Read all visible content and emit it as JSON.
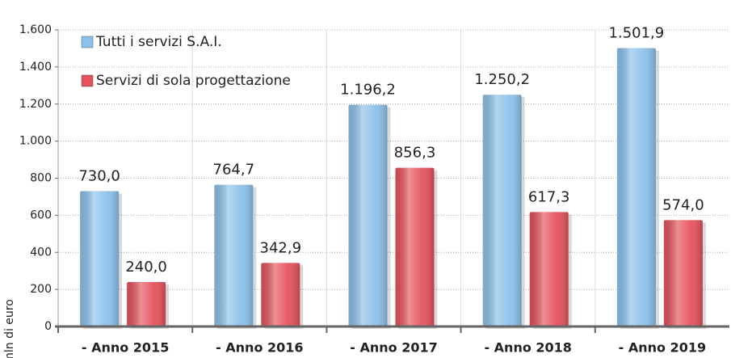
{
  "chart_data": {
    "type": "bar",
    "y_label": "mln di euro",
    "categories": [
      "- Anno 2015",
      "- Anno 2016",
      "- Anno 2017",
      "- Anno 2018",
      "- Anno 2019"
    ],
    "series": [
      {
        "name": "Tutti i servizi S.A.I.",
        "color": "#8cc1ea",
        "values": [
          730.0,
          764.7,
          1196.2,
          1250.2,
          1501.9
        ],
        "value_labels": [
          "730,0",
          "764,7",
          "1.196,2",
          "1.250,2",
          "1.501,9"
        ]
      },
      {
        "name": "Servizi di sola progettazione",
        "color": "#e5525c",
        "values": [
          240.0,
          342.9,
          856.3,
          617.3,
          574.0
        ],
        "value_labels": [
          "240,0",
          "342,9",
          "856,3",
          "617,3",
          "574,0"
        ]
      }
    ],
    "ylim": [
      0,
      1600
    ],
    "yticks": [
      0,
      200,
      400,
      600,
      800,
      {
        "value": 1000,
        "label": "1.000"
      },
      {
        "value": 1200,
        "label": "1.200"
      },
      {
        "value": 1400,
        "label": "1.400"
      },
      {
        "value": 1600,
        "label": "1.600"
      }
    ],
    "grid": true,
    "legend": "top-left"
  }
}
